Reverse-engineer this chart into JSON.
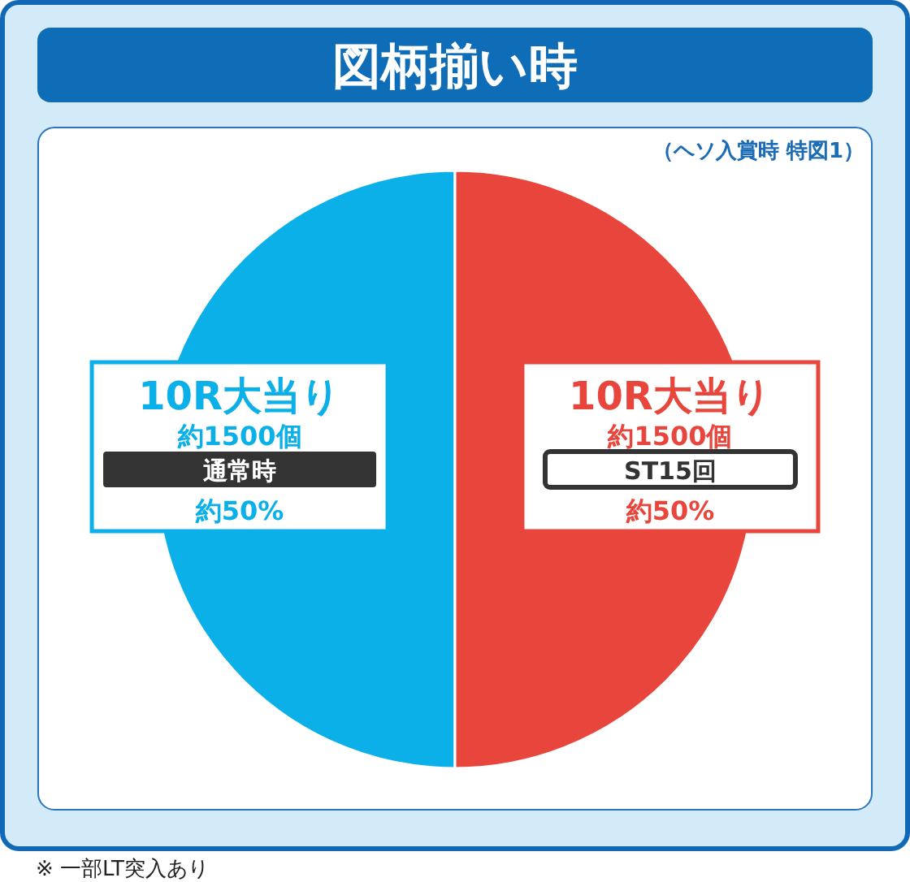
{
  "chart_data": {
    "type": "pie",
    "title": "図柄揃い時",
    "subtitle": "（ヘソ入賞時 特図1）",
    "categories": [
      "10R大当り",
      "10R大当り"
    ],
    "values": [
      50,
      50
    ],
    "colors": [
      "#0cb0e8",
      "#e8463d"
    ],
    "value_labels": [
      "約50%",
      "約50%"
    ],
    "annotations": [
      "約1500個",
      "通常時",
      "約1500個",
      "ST15回",
      "※ 一部LT突入あり"
    ]
  }
}
